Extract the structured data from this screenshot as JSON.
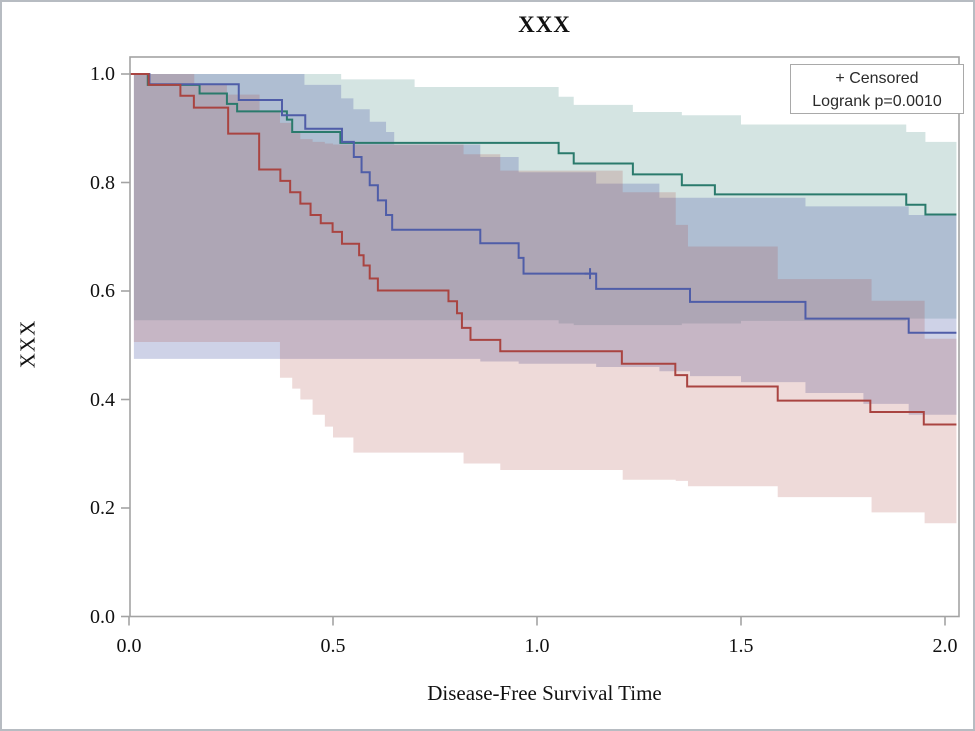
{
  "figure": {
    "title": "XXX",
    "y_axis": {
      "label": "XXX",
      "ticks": [
        "1.0",
        "0.8",
        "0.6",
        "0.4",
        "0.2",
        "0.0"
      ],
      "range": [
        0.0,
        1.0
      ]
    },
    "x_axis": {
      "label": "Disease-Free Survival Time",
      "ticks": [
        "0.0",
        "0.5",
        "1.0",
        "1.5",
        "2.0"
      ],
      "range": [
        0.0,
        2.0
      ]
    },
    "legend": {
      "censored_label": "+ Censored",
      "logrank_label": "Logrank p=0.0010"
    }
  },
  "colors": {
    "group1_line": "#2a7a6c",
    "group2_line": "#4f5da8",
    "group3_line": "#a94441",
    "axis": "#a3a3a3",
    "text": "#111111"
  },
  "chart_data": {
    "type": "line",
    "subtype": "kaplan-meier-step",
    "title": "XXX",
    "xlabel": "Disease-Free Survival Time",
    "ylabel": "XXX",
    "xlim": [
      0.0,
      2.05
    ],
    "ylim": [
      0.0,
      1.0
    ],
    "grid": false,
    "legend_position": "top-right",
    "annotations": [
      "+ Censored",
      "Logrank p=0.0010"
    ],
    "end_time": 2.028,
    "band_start_time": 0.012,
    "series": [
      {
        "name": "group-1-teal",
        "color": "#2a7a6c",
        "band_opacity": 0.2,
        "steps": [
          [
            0,
            1.0
          ],
          [
            0.046,
            0.98
          ],
          [
            0.173,
            0.964
          ],
          [
            0.24,
            0.945
          ],
          [
            0.265,
            0.931
          ],
          [
            0.387,
            0.916
          ],
          [
            0.4,
            0.893
          ],
          [
            0.518,
            0.873
          ],
          [
            1.053,
            0.854
          ],
          [
            1.09,
            0.835
          ],
          [
            1.235,
            0.815
          ],
          [
            1.355,
            0.795
          ],
          [
            1.436,
            0.778
          ],
          [
            1.905,
            0.759
          ],
          [
            1.952,
            0.741
          ]
        ],
        "band": [
          [
            0.012,
            0.546,
            1.0
          ],
          [
            0.52,
            0.546,
            0.99
          ],
          [
            0.7,
            0.546,
            0.976
          ],
          [
            1.053,
            0.54,
            0.958
          ],
          [
            1.09,
            0.537,
            0.943
          ],
          [
            1.235,
            0.537,
            0.93
          ],
          [
            1.355,
            0.54,
            0.924
          ],
          [
            1.5,
            0.545,
            0.907
          ],
          [
            1.905,
            0.549,
            0.893
          ],
          [
            1.952,
            0.549,
            0.875
          ]
        ],
        "censored": []
      },
      {
        "name": "group-2-blue",
        "color": "#4f5da8",
        "band_opacity": 0.28,
        "steps": [
          [
            0,
            1.0
          ],
          [
            0.05,
            0.981
          ],
          [
            0.269,
            0.952
          ],
          [
            0.375,
            0.924
          ],
          [
            0.432,
            0.899
          ],
          [
            0.522,
            0.875
          ],
          [
            0.551,
            0.847
          ],
          [
            0.57,
            0.819
          ],
          [
            0.59,
            0.795
          ],
          [
            0.61,
            0.767
          ],
          [
            0.63,
            0.74
          ],
          [
            0.645,
            0.713
          ],
          [
            0.861,
            0.688
          ],
          [
            0.955,
            0.661
          ],
          [
            0.967,
            0.632
          ],
          [
            1.145,
            0.604
          ],
          [
            1.375,
            0.58
          ],
          [
            1.658,
            0.549
          ],
          [
            1.911,
            0.523
          ]
        ],
        "band": [
          [
            0.012,
            0.475,
            1.0
          ],
          [
            0.43,
            0.475,
            0.98
          ],
          [
            0.52,
            0.475,
            0.955
          ],
          [
            0.55,
            0.475,
            0.935
          ],
          [
            0.59,
            0.475,
            0.912
          ],
          [
            0.63,
            0.475,
            0.893
          ],
          [
            0.65,
            0.475,
            0.87
          ],
          [
            0.861,
            0.47,
            0.847
          ],
          [
            0.955,
            0.466,
            0.819
          ],
          [
            1.145,
            0.46,
            0.798
          ],
          [
            1.3,
            0.452,
            0.772
          ],
          [
            1.375,
            0.443,
            0.772
          ],
          [
            1.5,
            0.432,
            0.772
          ],
          [
            1.658,
            0.412,
            0.756
          ],
          [
            1.8,
            0.392,
            0.756
          ],
          [
            1.911,
            0.372,
            0.74
          ]
        ],
        "censored": [
          [
            1.13,
            0.632
          ]
        ]
      },
      {
        "name": "group-3-red",
        "color": "#a94441",
        "band_opacity": 0.2,
        "steps": [
          [
            0,
            1.0
          ],
          [
            0.048,
            0.98
          ],
          [
            0.126,
            0.96
          ],
          [
            0.159,
            0.938
          ],
          [
            0.243,
            0.89
          ],
          [
            0.319,
            0.824
          ],
          [
            0.371,
            0.803
          ],
          [
            0.395,
            0.782
          ],
          [
            0.42,
            0.761
          ],
          [
            0.445,
            0.74
          ],
          [
            0.47,
            0.725
          ],
          [
            0.499,
            0.709
          ],
          [
            0.522,
            0.687
          ],
          [
            0.564,
            0.666
          ],
          [
            0.575,
            0.647
          ],
          [
            0.59,
            0.623
          ],
          [
            0.61,
            0.601
          ],
          [
            0.783,
            0.581
          ],
          [
            0.804,
            0.559
          ],
          [
            0.816,
            0.532
          ],
          [
            0.837,
            0.51
          ],
          [
            0.91,
            0.489
          ],
          [
            1.208,
            0.466
          ],
          [
            1.339,
            0.445
          ],
          [
            1.368,
            0.424
          ],
          [
            1.59,
            0.398
          ],
          [
            1.817,
            0.377
          ],
          [
            1.948,
            0.354
          ]
        ],
        "band": [
          [
            0.012,
            0.506,
            1.0
          ],
          [
            0.16,
            0.506,
            0.982
          ],
          [
            0.24,
            0.506,
            0.962
          ],
          [
            0.32,
            0.506,
            0.932
          ],
          [
            0.37,
            0.44,
            0.91
          ],
          [
            0.4,
            0.42,
            0.892
          ],
          [
            0.42,
            0.4,
            0.88
          ],
          [
            0.45,
            0.372,
            0.875
          ],
          [
            0.48,
            0.35,
            0.872
          ],
          [
            0.5,
            0.33,
            0.87
          ],
          [
            0.55,
            0.302,
            0.87
          ],
          [
            0.82,
            0.282,
            0.852
          ],
          [
            0.91,
            0.27,
            0.822
          ],
          [
            1.21,
            0.252,
            0.782
          ],
          [
            1.34,
            0.25,
            0.722
          ],
          [
            1.37,
            0.24,
            0.682
          ],
          [
            1.59,
            0.22,
            0.622
          ],
          [
            1.82,
            0.192,
            0.582
          ],
          [
            1.95,
            0.172,
            0.512
          ]
        ],
        "censored": []
      }
    ]
  }
}
